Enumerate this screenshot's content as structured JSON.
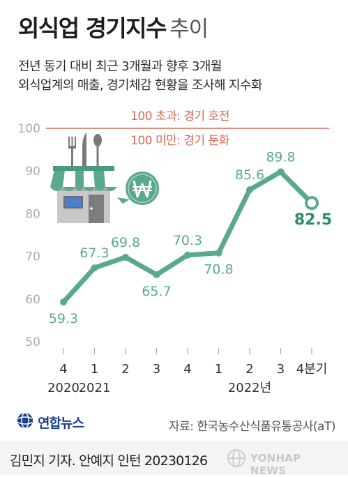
{
  "header": {
    "title_main": "외식업 경기지수",
    "title_suffix": "추이",
    "subtitle_line1": "전년 동기 대비 최근 3개월과 향후 3개월",
    "subtitle_line2": "외식업계의 매출, 경기체감 현황을 조사해 지수화"
  },
  "chart_data": {
    "type": "line",
    "title": "",
    "xlabel": "",
    "ylabel": "",
    "ylim": [
      50,
      100
    ],
    "yticks": [
      50,
      60,
      70,
      80,
      90,
      100
    ],
    "reference": {
      "value": 100,
      "label_above": "100 초과: 경기 호전",
      "label_below": "100 미만: 경기 둔화",
      "color": "#d86a55"
    },
    "categories": [
      "4",
      "1",
      "2",
      "3",
      "4",
      "1",
      "2",
      "3",
      "4분기"
    ],
    "year_labels": [
      {
        "index": 0,
        "label": "2020"
      },
      {
        "index": 1,
        "label": "2021"
      },
      {
        "index": 6,
        "label": "2022년"
      }
    ],
    "series": [
      {
        "values": [
          59.3,
          67.3,
          69.8,
          65.7,
          70.3,
          70.8,
          85.6,
          89.8,
          82.5
        ],
        "value_labels": [
          "59.3",
          "67.3",
          "69.8",
          "65.7",
          "70.3",
          "70.8",
          "85.6",
          "89.8",
          "82.5"
        ],
        "label_positions": [
          "below",
          "above",
          "above",
          "below",
          "above",
          "below",
          "above",
          "above",
          "below"
        ],
        "color": "#5aa98e",
        "highlight_index": 8,
        "highlight_color": "#2a8f6a"
      }
    ],
    "grid": false,
    "axis_color": "#aaaaaa",
    "tick_label_color": "#aaaaaa",
    "category_label_color": "#333333"
  },
  "footer": {
    "logo_text": "연합뉴스",
    "source": "자료: 한국농수산식품유통공사(aT)",
    "credit": "김민지 기자. 안예지 인턴  20230126",
    "watermark": "YONHAP NEWS"
  },
  "icons": [
    "restaurant-store-icon",
    "won-speech-bubble-icon",
    "yonhap-globe-icon"
  ]
}
